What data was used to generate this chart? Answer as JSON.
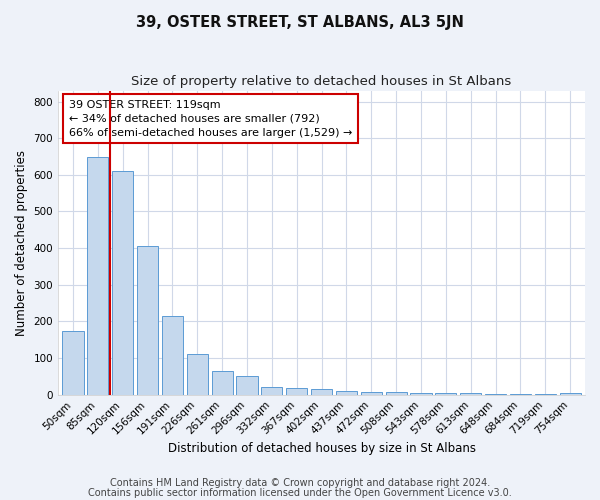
{
  "title": "39, OSTER STREET, ST ALBANS, AL3 5JN",
  "subtitle": "Size of property relative to detached houses in St Albans",
  "xlabel": "Distribution of detached houses by size in St Albans",
  "ylabel": "Number of detached properties",
  "categories": [
    "50sqm",
    "85sqm",
    "120sqm",
    "156sqm",
    "191sqm",
    "226sqm",
    "261sqm",
    "296sqm",
    "332sqm",
    "367sqm",
    "402sqm",
    "437sqm",
    "472sqm",
    "508sqm",
    "543sqm",
    "578sqm",
    "613sqm",
    "648sqm",
    "684sqm",
    "719sqm",
    "754sqm"
  ],
  "values": [
    175,
    650,
    610,
    405,
    215,
    110,
    65,
    50,
    20,
    18,
    15,
    10,
    7,
    7,
    5,
    5,
    5,
    3,
    2,
    1,
    5
  ],
  "bar_color": "#c5d8ed",
  "bar_edge_color": "#5b9bd5",
  "vline_color": "#cc0000",
  "annotation_text": "39 OSTER STREET: 119sqm\n← 34% of detached houses are smaller (792)\n66% of semi-detached houses are larger (1,529) →",
  "annotation_box_color": "#cc0000",
  "ylim": [
    0,
    830
  ],
  "yticks": [
    0,
    100,
    200,
    300,
    400,
    500,
    600,
    700,
    800
  ],
  "footer_line1": "Contains HM Land Registry data © Crown copyright and database right 2024.",
  "footer_line2": "Contains public sector information licensed under the Open Government Licence v3.0.",
  "bg_color": "#eef2f9",
  "plot_bg_color": "#ffffff",
  "grid_color": "#d0d8e8",
  "title_fontsize": 10.5,
  "subtitle_fontsize": 9.5,
  "label_fontsize": 8.5,
  "tick_fontsize": 7.5,
  "footer_fontsize": 7.0,
  "vline_xindex": 1.5
}
